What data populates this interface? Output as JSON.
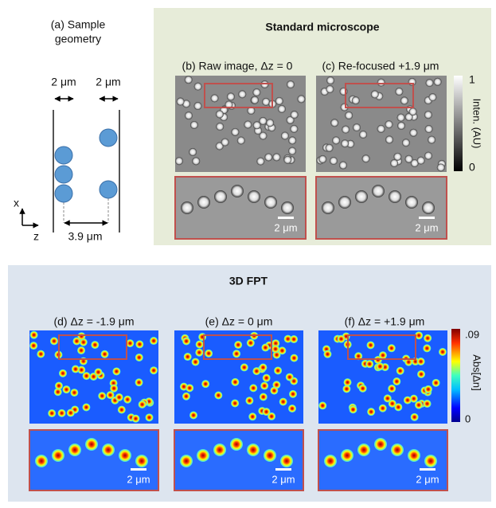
{
  "panel_a": {
    "label": "(a) Sample",
    "label2": "geometry",
    "gap_left": "2 μm",
    "gap_right": "2 μm",
    "axis_x": "x",
    "axis_z": "z",
    "separation": "3.9 μm"
  },
  "standard": {
    "title": "Standard microscope",
    "panel_b": "(b) Raw image, Δz = 0",
    "panel_c": "(c) Re-focused +1.9 μm",
    "scale_b": "2 μm",
    "scale_c": "2 μm",
    "colorbar_max": "1",
    "colorbar_min": "0",
    "colorbar_label": "Inten. (AU)"
  },
  "fpt": {
    "title": "3D FPT",
    "panel_d": "(d) Δz = -1.9 μm",
    "panel_e": "(e) Δz = 0 μm",
    "panel_f": "(f) Δz = +1.9 μm",
    "scale_d": "2 μm",
    "scale_e": "2 μm",
    "scale_f": "2 μm",
    "colorbar_max": ".09",
    "colorbar_min": "0",
    "colorbar_label": "Abs[Δn]"
  }
}
